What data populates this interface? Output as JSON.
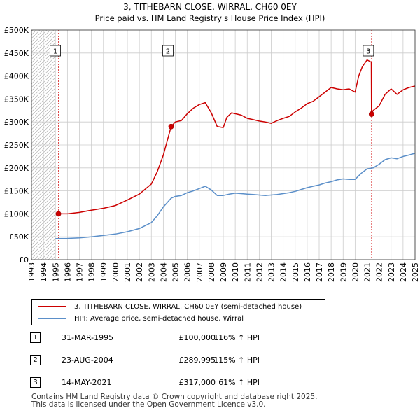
{
  "chart_data": {
    "type": "line",
    "title": "3, TITHEBARN CLOSE, WIRRAL, CH60 0EY",
    "subtitle": "Price paid vs. HM Land Registry's House Price Index (HPI)",
    "xlabel": "",
    "ylabel": "",
    "xlim": [
      1993,
      2025
    ],
    "ylim": [
      0,
      500000
    ],
    "y_ticks": [
      {
        "value": 0,
        "label": "£0"
      },
      {
        "value": 50000,
        "label": "£50K"
      },
      {
        "value": 100000,
        "label": "£100K"
      },
      {
        "value": 150000,
        "label": "£150K"
      },
      {
        "value": 200000,
        "label": "£200K"
      },
      {
        "value": 250000,
        "label": "£250K"
      },
      {
        "value": 300000,
        "label": "£300K"
      },
      {
        "value": 350000,
        "label": "£350K"
      },
      {
        "value": 400000,
        "label": "£400K"
      },
      {
        "value": 450000,
        "label": "£450K"
      },
      {
        "value": 500000,
        "label": "£500K"
      }
    ],
    "x_ticks": [
      "1993",
      "1994",
      "1995",
      "1996",
      "1997",
      "1998",
      "1999",
      "2000",
      "2001",
      "2002",
      "2003",
      "2004",
      "2005",
      "2006",
      "2007",
      "2008",
      "2009",
      "2010",
      "2011",
      "2012",
      "2013",
      "2014",
      "2015",
      "2016",
      "2017",
      "2018",
      "2019",
      "2020",
      "2021",
      "2022",
      "2023",
      "2024",
      "2025"
    ],
    "grid": true,
    "data_start": 1995.0,
    "series": [
      {
        "name": "3, TITHEBARN CLOSE, WIRRAL, CH60 0EY (semi-detached house)",
        "color": "#cc0000",
        "x": [
          1995.25,
          1996,
          1997,
          1998,
          1999,
          2000,
          2001,
          2002,
          2003,
          2003.5,
          2004,
          2004.65,
          2005,
          2005.5,
          2006,
          2006.5,
          2007,
          2007.5,
          2008,
          2008.5,
          2009,
          2009.3,
          2009.7,
          2010,
          2010.5,
          2011,
          2011.5,
          2012,
          2012.5,
          2013,
          2013.5,
          2014,
          2014.5,
          2015,
          2015.5,
          2016,
          2016.5,
          2017,
          2017.5,
          2018,
          2018.5,
          2019,
          2019.5,
          2020,
          2020.3,
          2020.6,
          2021,
          2021.35,
          2021.37,
          2021.5,
          2022,
          2022.5,
          2023,
          2023.5,
          2024,
          2024.5,
          2025
        ],
        "y": [
          100000,
          100000,
          103000,
          108000,
          112000,
          118000,
          130000,
          143000,
          165000,
          192000,
          228000,
          289995,
          300000,
          303000,
          318000,
          330000,
          338000,
          342000,
          320000,
          290000,
          288000,
          310000,
          320000,
          318000,
          315000,
          308000,
          305000,
          302000,
          300000,
          297000,
          303000,
          308000,
          312000,
          322000,
          330000,
          340000,
          345000,
          355000,
          365000,
          375000,
          372000,
          370000,
          372000,
          365000,
          400000,
          420000,
          435000,
          430000,
          317000,
          325000,
          335000,
          360000,
          372000,
          360000,
          370000,
          375000,
          378000
        ]
      },
      {
        "name": "HPI: Average price, semi-detached house, Wirral",
        "color": "#5b8fc9",
        "x": [
          1995,
          1996,
          1997,
          1998,
          1999,
          2000,
          2001,
          2002,
          2003,
          2003.5,
          2004,
          2004.65,
          2005,
          2005.5,
          2006,
          2006.5,
          2007,
          2007.5,
          2008,
          2008.5,
          2009,
          2009.5,
          2010,
          2010.5,
          2011,
          2011.5,
          2012,
          2012.5,
          2013,
          2013.5,
          2014,
          2014.5,
          2015,
          2015.5,
          2016,
          2016.5,
          2017,
          2017.5,
          2018,
          2018.5,
          2019,
          2019.5,
          2020,
          2020.5,
          2021,
          2021.5,
          2022,
          2022.5,
          2023,
          2023.5,
          2024,
          2024.5,
          2025
        ],
        "y": [
          46000,
          46500,
          47500,
          50000,
          53000,
          56000,
          61000,
          68000,
          81000,
          96000,
          115000,
          134000,
          138000,
          140000,
          146000,
          150000,
          155000,
          160000,
          152000,
          140000,
          140000,
          143000,
          145000,
          144000,
          143000,
          142000,
          141000,
          140000,
          141000,
          142000,
          144000,
          146000,
          149000,
          153000,
          157000,
          160000,
          163000,
          167000,
          170000,
          174000,
          176000,
          175000,
          175000,
          188000,
          198000,
          200000,
          208000,
          218000,
          222000,
          220000,
          225000,
          228000,
          232000
        ]
      }
    ],
    "annotations": [
      {
        "label": "1",
        "x": 1995.25,
        "y": 100000
      },
      {
        "label": "2",
        "x": 2004.65,
        "y": 289995
      },
      {
        "label": "3",
        "x": 2021.37,
        "y": 317000
      }
    ]
  },
  "sales": [
    {
      "num": "1",
      "date": "31-MAR-1995",
      "price": "£100,000",
      "hpi": "116% ↑ HPI"
    },
    {
      "num": "2",
      "date": "23-AUG-2004",
      "price": "£289,995",
      "hpi": "115% ↑ HPI"
    },
    {
      "num": "3",
      "date": "14-MAY-2021",
      "price": "£317,000",
      "hpi": "61% ↑ HPI"
    }
  ],
  "footer": {
    "line1": "Contains HM Land Registry data © Crown copyright and database right 2025.",
    "line2": "This data is licensed under the Open Government Licence v3.0."
  }
}
